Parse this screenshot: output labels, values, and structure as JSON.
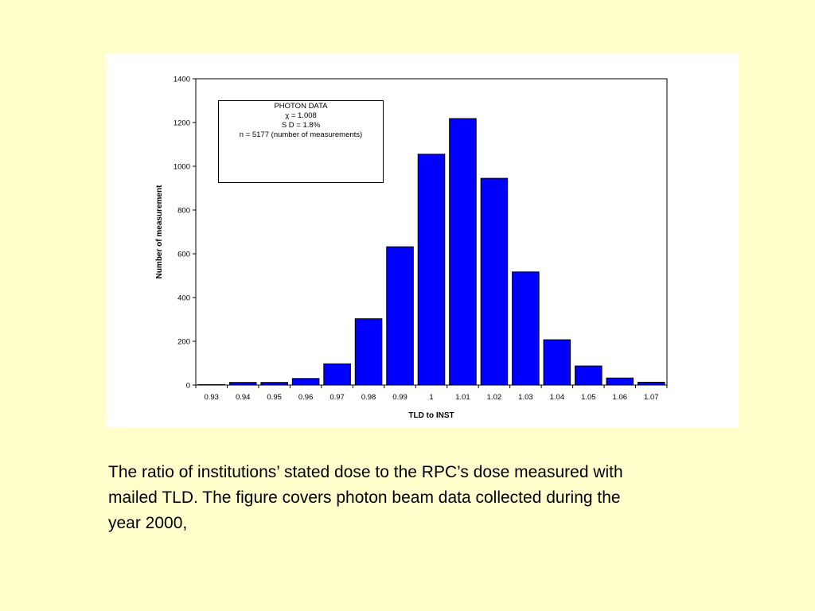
{
  "chart_data": {
    "type": "bar",
    "categories": [
      "0.93",
      "0.94",
      "0.95",
      "0.96",
      "0.97",
      "0.98",
      "0.99",
      "1",
      "1.01",
      "1.02",
      "1.03",
      "1.04",
      "1.05",
      "1.06",
      "1.07"
    ],
    "values": [
      2,
      12,
      12,
      30,
      97,
      303,
      632,
      1055,
      1218,
      945,
      517,
      207,
      87,
      32,
      13
    ],
    "xlabel": "TLD to INST",
    "ylabel": "Number of measurement",
    "ylim": [
      0,
      1400
    ],
    "yticks": [
      0,
      200,
      400,
      600,
      800,
      1000,
      1200,
      1400
    ],
    "bar_color": "#0000FF",
    "grid": false,
    "annotation": {
      "lines": [
        "PHOTON DATA",
        "χ  = 1.008",
        "S D = 1.8%",
        "n = 5177 (number of measurements)"
      ],
      "placement": "top-left"
    }
  },
  "caption": {
    "lines": [
      "The ratio of institutions’ stated dose to the RPC’s dose measured with",
      "mailed TLD. The figure covers photon beam data collected during the",
      "year 2000,"
    ]
  },
  "colors": {
    "background": "#FFFFCC",
    "panel": "#FFFFFF",
    "bar": "#0000FF"
  }
}
